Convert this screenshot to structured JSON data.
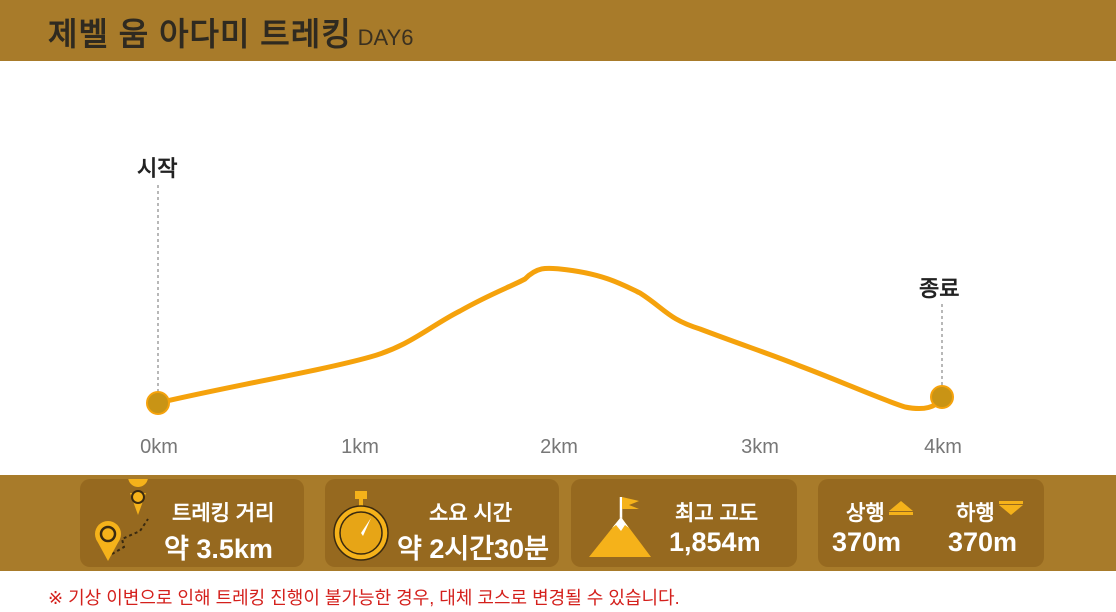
{
  "header": {
    "title": "제벨 움 아다미 트레킹",
    "day": "DAY6"
  },
  "markers": {
    "start": "시작",
    "end": "종료"
  },
  "axis": {
    "ticks": [
      "0km",
      "1km",
      "2km",
      "3km",
      "4km"
    ]
  },
  "stats": {
    "distance": {
      "label": "트레킹 거리",
      "value": "약 3.5km"
    },
    "duration": {
      "label": "소요 시간",
      "value": "약 2시간30분"
    },
    "altitude": {
      "label": "최고 고도",
      "value": "1,854m"
    },
    "ascent": {
      "label": "상행",
      "value": "370m"
    },
    "descent": {
      "label": "하행",
      "value": "370m"
    }
  },
  "notice": "※ 기상 이변으로 인해 트레킹 진행이 불가능한 경우, 대체 코스로 변경될 수 있습니다.",
  "colors": {
    "header": "#a87b2a",
    "card": "#96691f",
    "route": "#f5a20c",
    "notice": "#d4201c"
  }
}
